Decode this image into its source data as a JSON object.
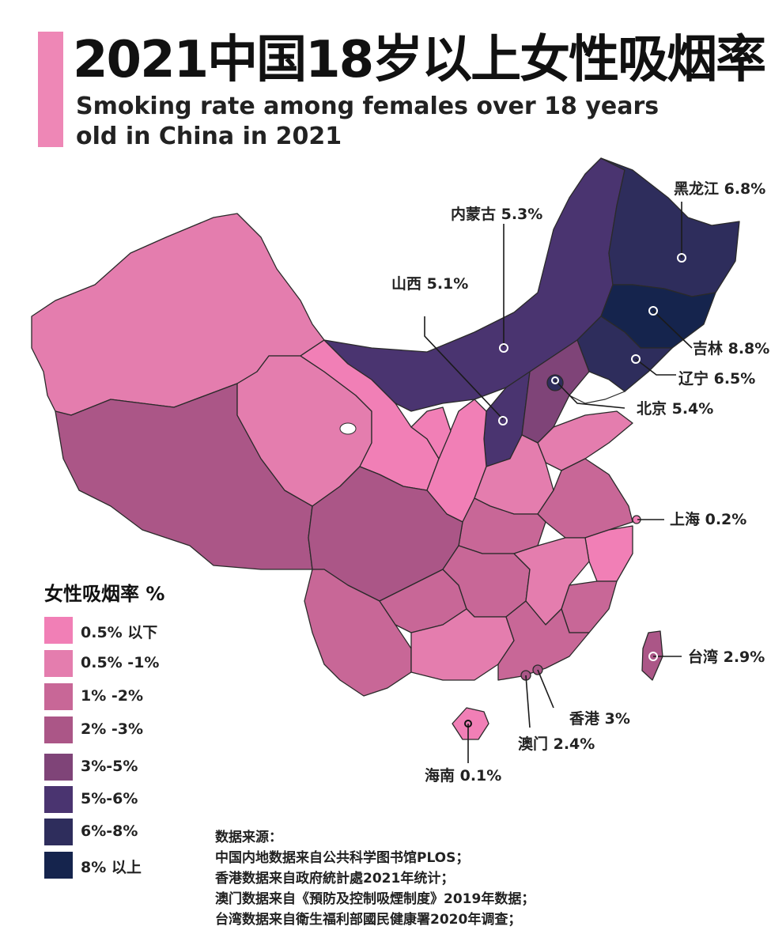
{
  "title_zh": "2021中国18岁以上女性吸烟率",
  "title_en": "Smoking rate among females over 18 years old in China in 2021",
  "colors": {
    "accent": "#ee87b6",
    "tier1": "#f17fb6",
    "tier2": "#e47dae",
    "tier3": "#c86797",
    "tier4": "#ab5687",
    "tier5": "#7f4478",
    "tier6": "#4a3470",
    "tier7": "#2e2d5c",
    "tier8": "#15244d"
  },
  "legend": {
    "title": "女性吸烟率 %",
    "items": [
      {
        "label": "0.5% 以下",
        "color": "#f17fb6"
      },
      {
        "label": "0.5% -1%",
        "color": "#e47dae"
      },
      {
        "label": "1% -2%",
        "color": "#c86797"
      },
      {
        "label": "2% -3%",
        "color": "#ab5687"
      },
      {
        "label": "3%-5%",
        "color": "#7f4478"
      },
      {
        "label": "5%-6%",
        "color": "#4a3470"
      },
      {
        "label": "6%-8%",
        "color": "#2e2d5c"
      },
      {
        "label": "8% 以上",
        "color": "#15244d"
      }
    ]
  },
  "callouts": {
    "heilongjiang": "黑龙江 6.8%",
    "neimenggu": "内蒙古 5.3%",
    "shanxi": "山西 5.1%",
    "jilin": "吉林 8.8%",
    "liaoning": "辽宁 6.5%",
    "beijing": "北京 5.4%",
    "shanghai": "上海 0.2%",
    "taiwan": "台湾 2.9%",
    "hongkong": "香港 3%",
    "macau": "澳门 2.4%",
    "hainan": "海南 0.1%"
  },
  "sources": {
    "heading": "数据来源：",
    "lines": [
      "中国内地数据来自公共科学图书馆PLOS；",
      "香港数据来自政府統計處2021年统计；",
      "澳门数据来自《預防及控制吸煙制度》2019年数据；",
      "台湾数据来自衛生福利部國民健康署2020年调查；"
    ]
  }
}
